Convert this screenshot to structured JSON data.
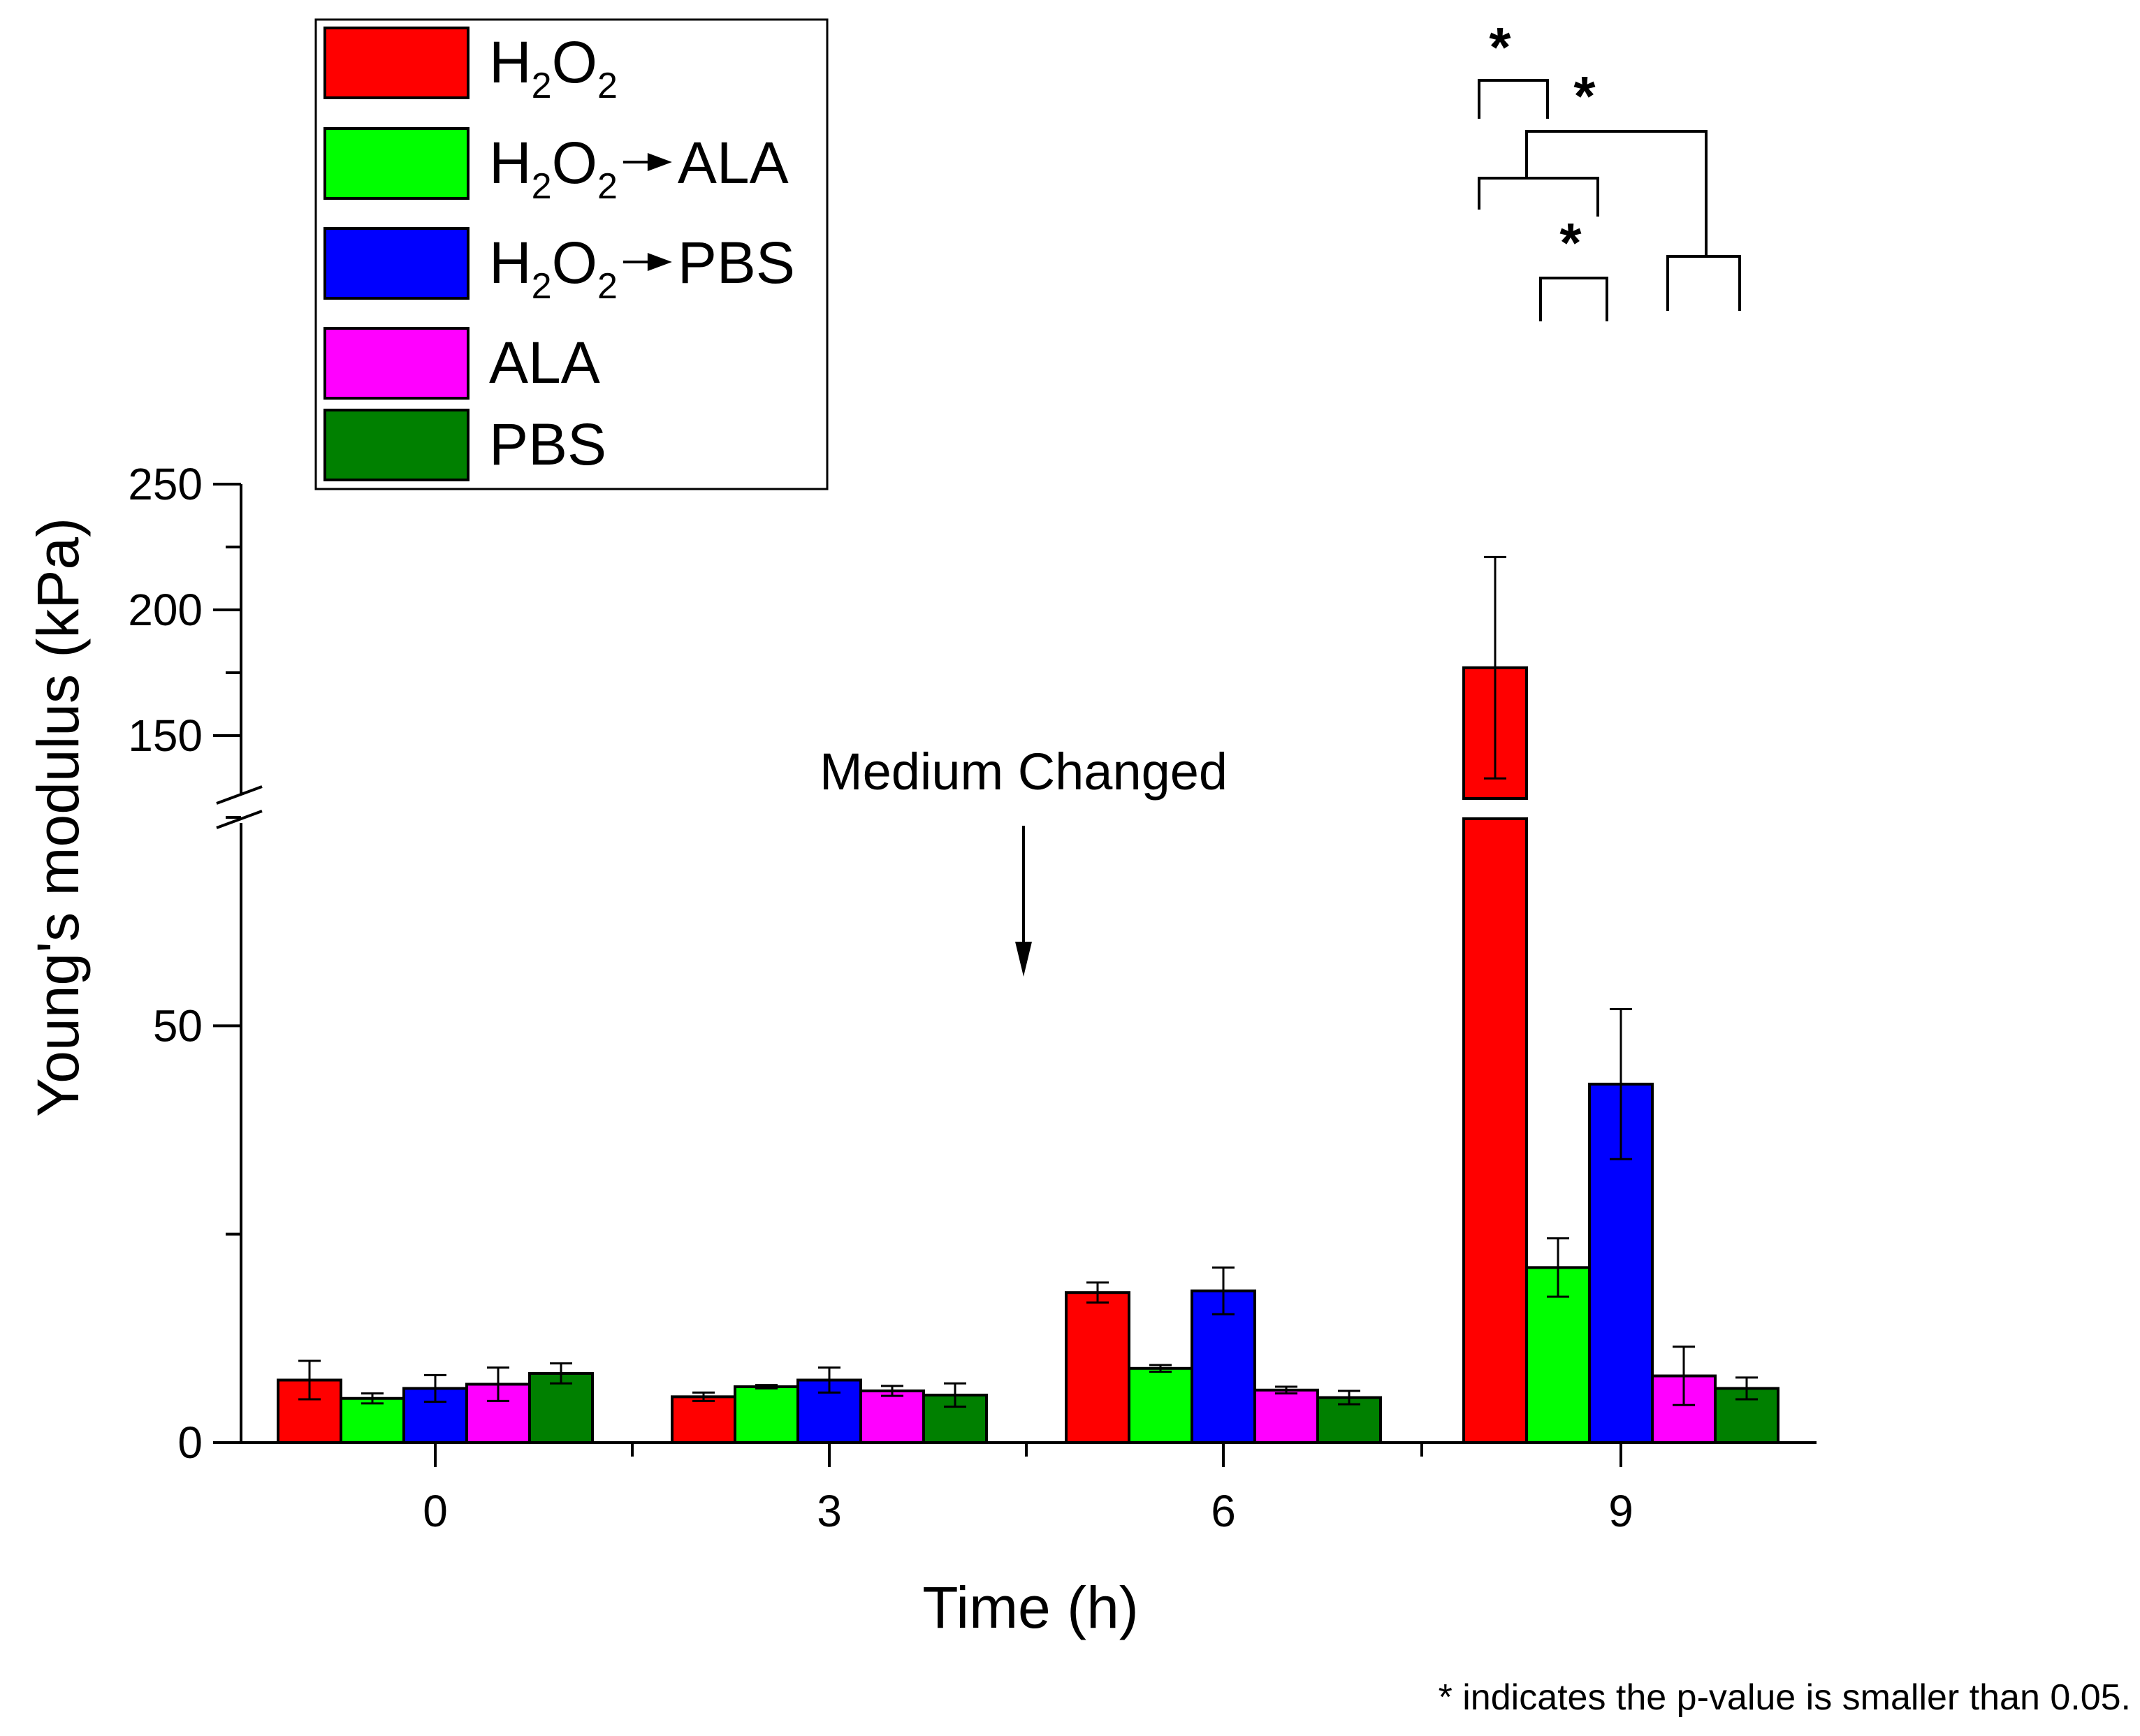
{
  "chart_data": {
    "type": "bar",
    "title": "",
    "xlabel": "Time (h)",
    "ylabel": "Young's modulus (kPa)",
    "categories": [
      "0",
      "3",
      "6",
      "9"
    ],
    "y_axis": {
      "lower_segment": {
        "range": [
          0,
          75
        ],
        "major_ticks": [
          0,
          50
        ],
        "tick_labels": [
          "0",
          "50"
        ]
      },
      "upper_segment": {
        "range": [
          125,
          250
        ],
        "major_ticks": [
          150,
          200,
          250
        ],
        "tick_labels": [
          "150",
          "200",
          "250"
        ]
      },
      "broken": true
    },
    "series": [
      {
        "name": "H2O2",
        "label_main": "H",
        "label_sub1": "2",
        "label_mid": "O",
        "label_sub2": "2",
        "label_tail": "",
        "color": "#ff0000",
        "values": [
          7.5,
          5.5,
          18,
          177
        ],
        "errors": [
          2.3,
          0.5,
          1.2,
          44
        ]
      },
      {
        "name": "H2O2→ALA",
        "label_main": "H",
        "label_sub1": "2",
        "label_mid": "O",
        "label_sub2": "2",
        "label_tail": "ALA",
        "color": "#00ff00",
        "values": [
          5.3,
          6.7,
          8.9,
          21
        ],
        "errors": [
          0.6,
          0.2,
          0.4,
          3.5
        ]
      },
      {
        "name": "H2O2→PBS",
        "label_main": "H",
        "label_sub1": "2",
        "label_mid": "O",
        "label_sub2": "2",
        "label_tail": "PBS",
        "color": "#0000ff",
        "values": [
          6.5,
          7.5,
          18.2,
          43
        ],
        "errors": [
          1.6,
          1.5,
          2.8,
          9
        ]
      },
      {
        "name": "ALA",
        "label_main": "ALA",
        "label_sub1": "",
        "label_mid": "",
        "label_sub2": "",
        "label_tail": "",
        "color": "#ff00ff",
        "values": [
          7,
          6.2,
          6.3,
          8
        ],
        "errors": [
          2,
          0.6,
          0.4,
          3.5
        ]
      },
      {
        "name": "PBS",
        "label_main": "PBS",
        "label_sub1": "",
        "label_mid": "",
        "label_sub2": "",
        "label_tail": "",
        "color": "#008000",
        "values": [
          8.3,
          5.7,
          5.4,
          6.5
        ],
        "errors": [
          1.2,
          1.4,
          0.8,
          1.3
        ]
      }
    ],
    "annotations": {
      "medium_changed": "Medium Changed",
      "significance_star": "*",
      "footnote": "* indicates the p-value is smaller than 0.05."
    }
  }
}
